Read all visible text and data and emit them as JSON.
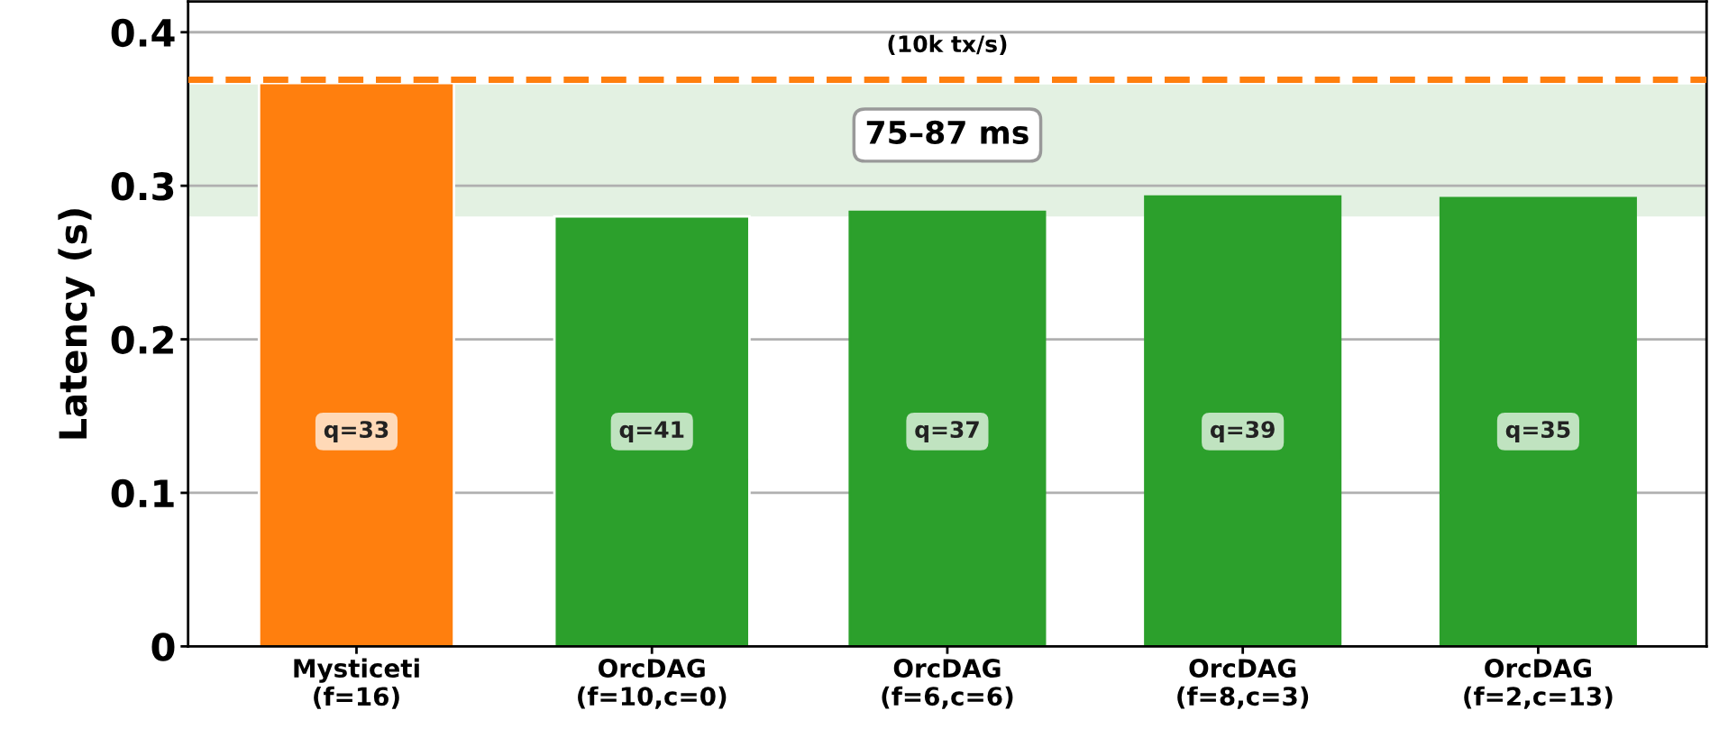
{
  "chart_data": {
    "type": "bar",
    "ylabel": "Latency (s)",
    "categories": [
      "Mysticeti\n(f=16)",
      "OrcDAG\n(f=10,c=0)",
      "OrcDAG\n(f=6,c=6)",
      "OrcDAG\n(f=8,c=3)",
      "OrcDAG\n(f=2,c=13)"
    ],
    "values": [
      0.367,
      0.28,
      0.283,
      0.293,
      0.292
    ],
    "colors": [
      "#ff7f0e",
      "#2ca02c",
      "#2ca02c",
      "#2ca02c",
      "#2ca02c"
    ],
    "annotations": [
      "q=33",
      "q=41",
      "q=37",
      "q=39",
      "q=35"
    ],
    "ylim": [
      0,
      0.42
    ],
    "yticks": [
      0,
      0.1,
      0.2,
      0.3,
      0.4
    ],
    "grid": "y",
    "ref_lines": [
      {
        "axis": "y",
        "value": 0.369,
        "label": "(10k tx/s)",
        "color": "#ff7f0e",
        "line_style": "dashed"
      }
    ],
    "bands": [
      {
        "axis": "y",
        "from": 0.28,
        "to": 0.366,
        "label": "75–87 ms",
        "color": "#e3f1e2"
      }
    ]
  }
}
